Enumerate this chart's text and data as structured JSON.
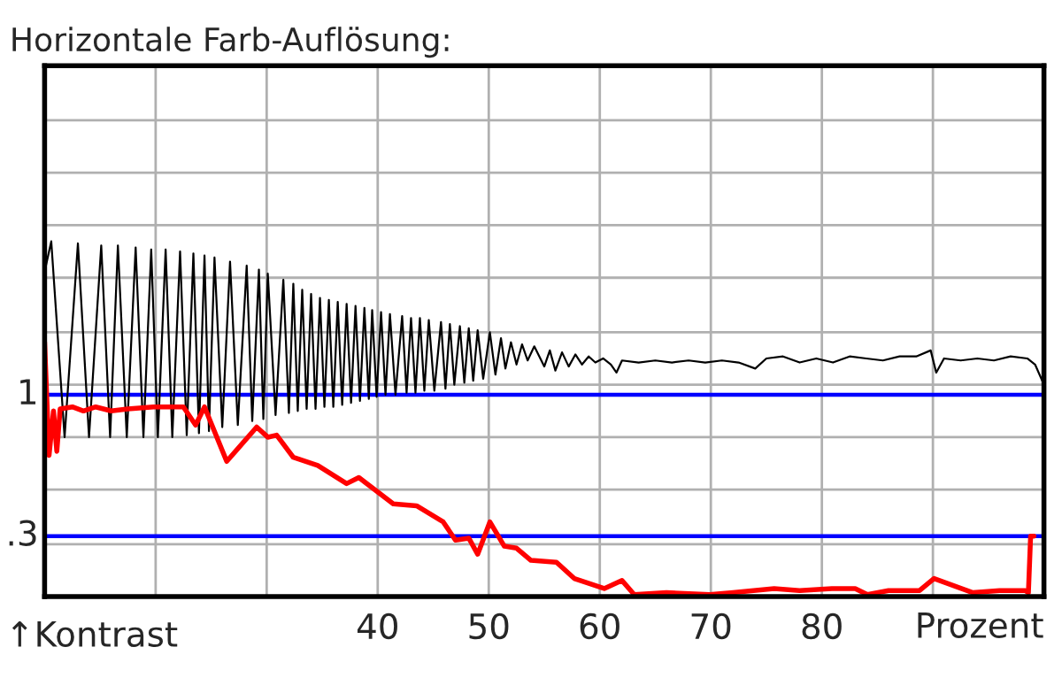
{
  "chart_data": {
    "type": "line",
    "title": "Horizontale Farb-Auflösung:",
    "xlabel": "Prozent",
    "annotations": [
      "↑Kontrast"
    ],
    "xlim": [
      10,
      100
    ],
    "xticks": [
      {
        "value": 10,
        "label": null
      },
      {
        "value": 20,
        "label": null
      },
      {
        "value": 30,
        "label": null
      },
      40,
      50,
      60,
      70,
      80,
      {
        "value": 90,
        "label": null
      },
      {
        "value": 100,
        "label": null
      }
    ],
    "ylim": [
      0,
      2.63
    ],
    "yticks": [
      {
        "value": 0.26,
        "label": null
      },
      {
        "value": 0.53,
        "label": null
      },
      {
        "value": 0.79,
        "label": null
      },
      {
        "value": 1.05,
        "label": null
      },
      {
        "value": 1.31,
        "label": null
      },
      {
        "value": 1.58,
        "label": null
      },
      {
        "value": 1.84,
        "label": null
      },
      {
        "value": 2.1,
        "label": null
      },
      {
        "value": 2.36,
        "label": null
      }
    ],
    "grid": true,
    "ref_lines": [
      {
        "axis": "y",
        "value": 1,
        "label": "1",
        "color": "#0000ff"
      },
      {
        "axis": "y",
        "value": 0.3,
        "label": ".3",
        "color": "#0000ff"
      }
    ],
    "series": [
      {
        "color": "#000000",
        "x": [
          10.0,
          10.6,
          11.8,
          13.0,
          14.0,
          15.1,
          15.9,
          16.6,
          17.4,
          18.2,
          18.9,
          19.6,
          20.2,
          20.9,
          21.5,
          22.2,
          22.8,
          23.4,
          23.9,
          24.4,
          24.8,
          25.3,
          26.0,
          26.7,
          27.4,
          28.2,
          28.7,
          29.3,
          29.7,
          30.1,
          30.8,
          31.5,
          32.0,
          32.4,
          32.8,
          33.2,
          33.6,
          34.0,
          34.4,
          34.8,
          35.2,
          35.6,
          36.0,
          36.4,
          36.8,
          37.2,
          37.6,
          38.0,
          38.4,
          38.8,
          39.2,
          39.5,
          39.9,
          40.3,
          40.7,
          41.1,
          41.6,
          42.2,
          42.6,
          43.0,
          43.4,
          43.8,
          44.2,
          44.6,
          45.1,
          45.7,
          46.1,
          46.5,
          46.9,
          47.4,
          47.8,
          48.2,
          48.6,
          49.0,
          49.5,
          50.1,
          50.6,
          51.1,
          51.5,
          52.0,
          52.5,
          53.0,
          53.5,
          54.1,
          55.0,
          55.5,
          56.0,
          56.6,
          57.2,
          57.8,
          58.4,
          59.0,
          59.6,
          60.3,
          61.0,
          61.5,
          62.0,
          63.5,
          65,
          66.5,
          68,
          69.5,
          71,
          72.5,
          74,
          75,
          76.5,
          78,
          79.5,
          81,
          82.5,
          84,
          85.5,
          87,
          88.5,
          89.8,
          90.3,
          91,
          92.5,
          94,
          95.5,
          97,
          98.5,
          99.2,
          100
        ],
        "values": [
          1.61,
          1.76,
          0.79,
          1.75,
          0.79,
          1.74,
          0.79,
          1.74,
          0.79,
          1.73,
          0.79,
          1.72,
          0.79,
          1.72,
          0.79,
          1.71,
          0.8,
          1.7,
          0.81,
          1.69,
          0.82,
          1.68,
          0.84,
          1.66,
          0.85,
          1.64,
          0.87,
          1.62,
          0.88,
          1.6,
          0.9,
          1.57,
          0.91,
          1.55,
          0.92,
          1.52,
          0.93,
          1.5,
          0.93,
          1.48,
          0.94,
          1.47,
          0.94,
          1.46,
          0.95,
          1.45,
          0.96,
          1.44,
          0.97,
          1.43,
          0.98,
          1.42,
          0.99,
          1.41,
          1.0,
          1.4,
          1.0,
          1.39,
          1.01,
          1.38,
          1.01,
          1.38,
          1.02,
          1.37,
          1.02,
          1.36,
          1.03,
          1.35,
          1.05,
          1.34,
          1.06,
          1.33,
          1.07,
          1.32,
          1.08,
          1.31,
          1.1,
          1.28,
          1.13,
          1.26,
          1.15,
          1.25,
          1.17,
          1.24,
          1.14,
          1.22,
          1.12,
          1.21,
          1.14,
          1.2,
          1.15,
          1.19,
          1.16,
          1.18,
          1.15,
          1.11,
          1.17,
          1.16,
          1.17,
          1.16,
          1.17,
          1.16,
          1.17,
          1.16,
          1.13,
          1.18,
          1.19,
          1.16,
          1.18,
          1.16,
          1.19,
          1.18,
          1.17,
          1.19,
          1.19,
          1.22,
          1.11,
          1.18,
          1.17,
          1.18,
          1.17,
          1.19,
          1.18,
          1.15,
          1.05
        ]
      },
      {
        "color": "#ff0000",
        "x": [
          10.0,
          10.4,
          10.8,
          11.1,
          11.4,
          12.5,
          13.5,
          14.6,
          16,
          17.5,
          19.8,
          22.5,
          23.6,
          24.4,
          26.4,
          29.1,
          30.1,
          30.9,
          32.4,
          34.6,
          37.2,
          38.3,
          41.4,
          43.5,
          45.9,
          47.0,
          48.2,
          49.0,
          50.1,
          51.4,
          52.5,
          53.8,
          56.1,
          57.7,
          60.4,
          62.0,
          63.1,
          66,
          69.9,
          72,
          75.7,
          78,
          80.9,
          83.0,
          84.1,
          86,
          88.8,
          90.1,
          93.6,
          96,
          98.3,
          98.6,
          98.8,
          99.1
        ],
        "values": [
          1.26,
          0.7,
          0.92,
          0.72,
          0.93,
          0.94,
          0.92,
          0.94,
          0.92,
          0.93,
          0.94,
          0.94,
          0.85,
          0.94,
          0.67,
          0.84,
          0.79,
          0.8,
          0.69,
          0.65,
          0.56,
          0.59,
          0.46,
          0.45,
          0.37,
          0.28,
          0.29,
          0.21,
          0.37,
          0.25,
          0.24,
          0.18,
          0.17,
          0.09,
          0.04,
          0.08,
          0.01,
          0.02,
          0.01,
          0.02,
          0.04,
          0.03,
          0.04,
          0.04,
          0.01,
          0.03,
          0.03,
          0.09,
          0.02,
          0.03,
          0.03,
          0.02,
          0.3,
          0.3
        ]
      }
    ]
  }
}
